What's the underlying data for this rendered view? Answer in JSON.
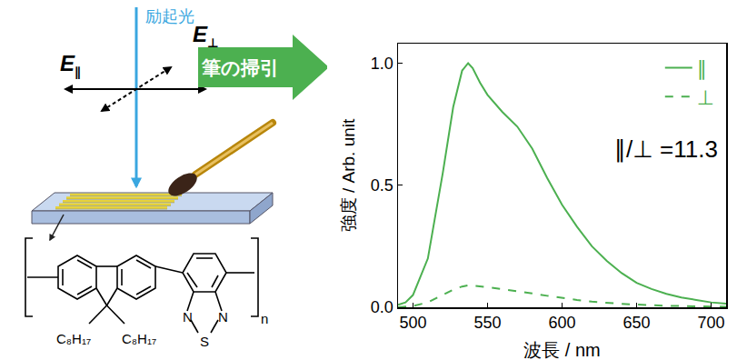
{
  "chart_data": {
    "type": "line",
    "x_label": "波長 / nm",
    "y_label": "強度 / Arb. unit",
    "x": [
      490,
      495,
      500,
      510,
      520,
      527,
      533,
      537,
      540,
      545,
      550,
      560,
      570,
      580,
      590,
      600,
      610,
      620,
      630,
      640,
      650,
      660,
      670,
      680,
      690,
      700,
      710
    ],
    "series": [
      {
        "name": "∥",
        "color": "#4cb050",
        "line_style": "solid",
        "values": [
          0.01,
          0.02,
          0.05,
          0.2,
          0.55,
          0.82,
          0.97,
          1.0,
          0.98,
          0.92,
          0.87,
          0.8,
          0.74,
          0.65,
          0.53,
          0.42,
          0.33,
          0.25,
          0.19,
          0.14,
          0.1,
          0.075,
          0.055,
          0.04,
          0.03,
          0.02,
          0.015
        ]
      },
      {
        "name": "⊥",
        "color": "#4cb050",
        "line_style": "dashed",
        "values": [
          0,
          0.002,
          0.005,
          0.02,
          0.05,
          0.072,
          0.085,
          0.09,
          0.089,
          0.086,
          0.082,
          0.074,
          0.066,
          0.057,
          0.047,
          0.038,
          0.03,
          0.023,
          0.018,
          0.014,
          0.011,
          0.008,
          0.006,
          0.005,
          0.004,
          0.003,
          0.002
        ]
      }
    ],
    "xlim": [
      490,
      710
    ],
    "ylim": [
      0,
      1.08
    ],
    "xticks": [
      500,
      550,
      600,
      650,
      700
    ],
    "yticks": [
      {
        "value": 0,
        "label": "0.0"
      },
      {
        "value": 0.5,
        "label": "0.5"
      },
      {
        "value": 1,
        "label": "1.0"
      }
    ],
    "annotations": [
      "∥/⊥ =11.3"
    ],
    "legend": "top right",
    "grid": false
  },
  "diagram": {
    "excitation_light": "励起光",
    "field_parallel": {
      "symbol": "E",
      "subscript": "∥"
    },
    "field_perpendicular": {
      "symbol": "E",
      "subscript": "⊥"
    },
    "brush_sweep": "筆の掃引",
    "structure": {
      "substituents": [
        "C₈H₁₇",
        "C₈H₁₇"
      ],
      "heteroatoms": [
        "N",
        "S",
        "N"
      ],
      "repeat": "n"
    }
  }
}
